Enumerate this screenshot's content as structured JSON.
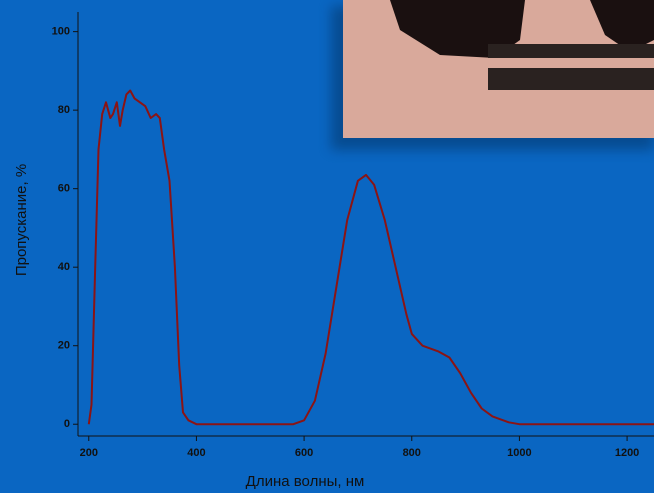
{
  "chart_data": {
    "type": "line",
    "x_label": "Длина волны, нм",
    "y_label": "Пропускание, %",
    "x": [
      200,
      205,
      212,
      218,
      225,
      232,
      240,
      245,
      252,
      258,
      263,
      270,
      277,
      285,
      295,
      305,
      315,
      325,
      332,
      340,
      350,
      360,
      368,
      375,
      385,
      400,
      500,
      580,
      600,
      620,
      640,
      660,
      680,
      700,
      715,
      730,
      750,
      770,
      790,
      800,
      820,
      850,
      870,
      890,
      910,
      930,
      950,
      980,
      1000,
      1100,
      1250
    ],
    "series": [
      {
        "name": "Пропускание",
        "color": "#8b1414",
        "values": [
          0,
          5,
          40,
          70,
          79,
          82,
          78,
          79,
          82,
          76,
          80,
          84,
          85,
          83,
          82,
          81,
          78,
          79,
          78,
          70,
          62,
          40,
          15,
          3,
          1,
          0,
          0,
          0,
          1,
          6,
          18,
          35,
          52,
          62,
          63.5,
          61,
          52,
          40,
          28,
          23,
          20,
          18.5,
          17,
          13,
          8,
          4,
          2,
          0.5,
          0,
          0,
          0
        ]
      }
    ],
    "xlim": [
      180,
      1250
    ],
    "ylim": [
      -3,
      105
    ],
    "xticks": [
      200,
      400,
      600,
      800,
      1000,
      1200
    ],
    "yticks": [
      0,
      20,
      40,
      60,
      80,
      100
    ]
  }
}
